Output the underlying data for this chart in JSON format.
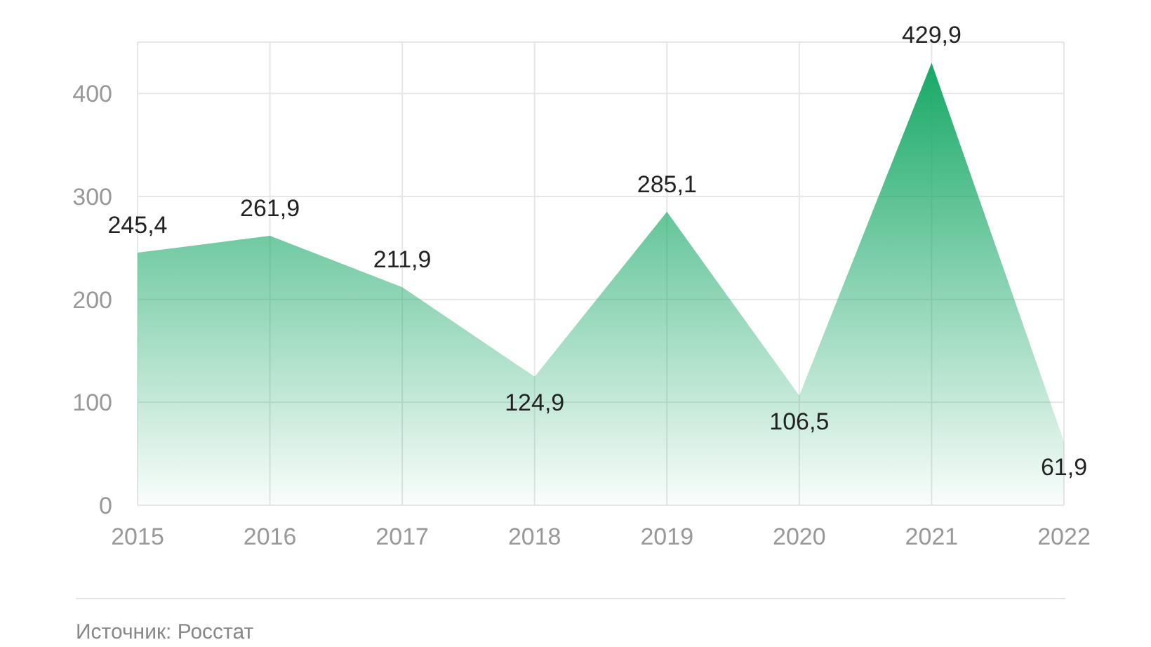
{
  "chart_data": {
    "type": "area",
    "categories": [
      "2015",
      "2016",
      "2017",
      "2018",
      "2019",
      "2020",
      "2021",
      "2022"
    ],
    "series": [
      {
        "color": "#17a866",
        "values": [
          245.4,
          261.9,
          211.9,
          124.9,
          285.1,
          106.5,
          429.9,
          61.9
        ]
      }
    ],
    "value_labels": [
      "245,4",
      "261,9",
      "211,9",
      "124,9",
      "285,1",
      "106,5",
      "429,9",
      "61,9"
    ],
    "ylim": [
      0,
      450
    ],
    "yticks": [
      0,
      100,
      200,
      300,
      400
    ],
    "grid": true,
    "annotations": [
      "Источник: Росстат"
    ]
  }
}
